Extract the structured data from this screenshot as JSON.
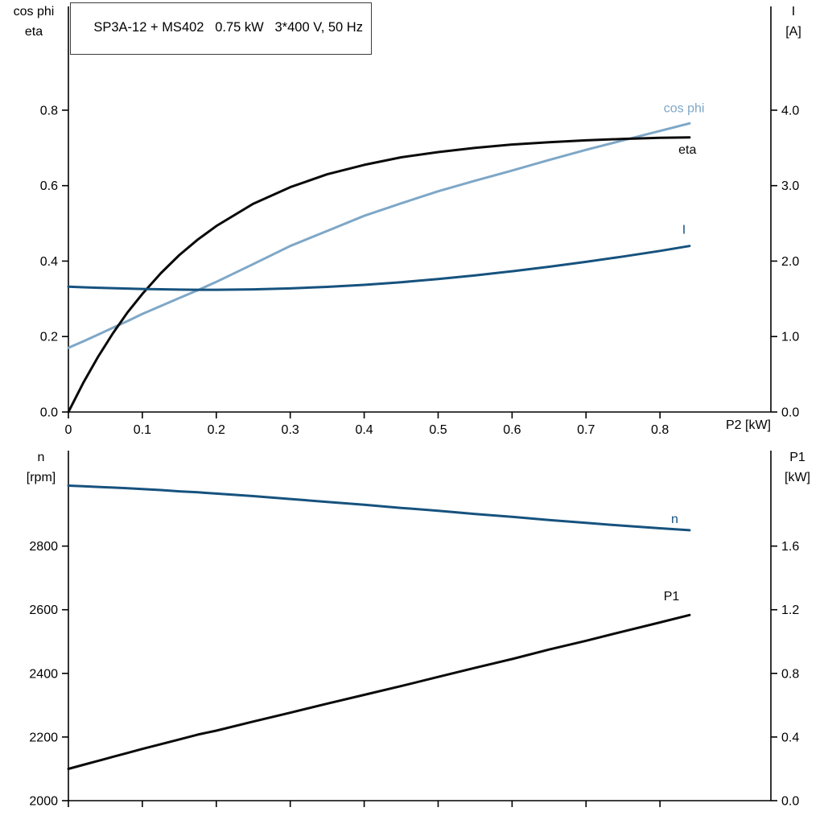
{
  "header": {
    "title": "SP3A-12 + MS402   0.75 kW   3*400 V, 50 Hz"
  },
  "colors": {
    "axis": "#000000",
    "text": "#000000",
    "curve_black": "#0a0a0a",
    "curve_light_blue": "#7ea7c7",
    "curve_dark_blue": "#16527e"
  },
  "chart_data": [
    {
      "type": "line",
      "title": "SP3A-12 + MS402   0.75 kW   3*400 V, 50 Hz",
      "grid": false,
      "x_axis": {
        "label": "P2 [kW]",
        "range": [
          0,
          0.95
        ],
        "ticks": [
          0,
          0.1,
          0.2,
          0.3,
          0.4,
          0.5,
          0.6,
          0.7,
          0.8
        ],
        "tick_labels": [
          "0",
          "0.1",
          "0.2",
          "0.3",
          "0.4",
          "0.5",
          "0.6",
          "0.7",
          "0.8"
        ],
        "show_tick_labels": true
      },
      "left_axis": {
        "title_lines": [
          "cos phi",
          "eta"
        ],
        "range": [
          0,
          1.075
        ],
        "ticks": [
          0,
          0.2,
          0.4,
          0.6,
          0.8
        ],
        "tick_labels": [
          "0.0",
          "0.2",
          "0.4",
          "0.6",
          "0.8"
        ]
      },
      "right_axis": {
        "title_lines": [
          "I",
          "[A]"
        ],
        "range": [
          0,
          5.375
        ],
        "ticks": [
          0,
          1,
          2,
          3,
          4
        ],
        "tick_labels": [
          "0.0",
          "1.0",
          "2.0",
          "3.0",
          "4.0"
        ]
      },
      "x": [
        0,
        0.02,
        0.04,
        0.06,
        0.08,
        0.1,
        0.125,
        0.15,
        0.175,
        0.2,
        0.25,
        0.3,
        0.35,
        0.4,
        0.45,
        0.5,
        0.55,
        0.6,
        0.65,
        0.7,
        0.75,
        0.8,
        0.84
      ],
      "series": [
        {
          "name": "cos phi",
          "axis": "left",
          "color": "curve_light_blue",
          "values": [
            0.17,
            0.187,
            0.205,
            0.223,
            0.241,
            0.26,
            0.281,
            0.302,
            0.323,
            0.345,
            0.392,
            0.44,
            0.48,
            0.52,
            0.553,
            0.585,
            0.613,
            0.64,
            0.668,
            0.695,
            0.72,
            0.745,
            0.765
          ],
          "label": {
            "text": "cos phi",
            "x": 0.805,
            "y": 0.795
          }
        },
        {
          "name": "eta",
          "axis": "left",
          "color": "curve_black",
          "values": [
            0,
            0.077,
            0.146,
            0.208,
            0.264,
            0.313,
            0.368,
            0.416,
            0.457,
            0.493,
            0.552,
            0.596,
            0.63,
            0.655,
            0.675,
            0.689,
            0.7,
            0.709,
            0.715,
            0.72,
            0.724,
            0.727,
            0.728
          ],
          "label": {
            "text": "eta",
            "x": 0.825,
            "y": 0.685
          }
        },
        {
          "name": "I",
          "axis": "right",
          "color": "curve_dark_blue",
          "values": [
            1.66,
            1.653,
            1.647,
            1.641,
            1.636,
            1.631,
            1.626,
            1.622,
            1.62,
            1.62,
            1.625,
            1.638,
            1.658,
            1.685,
            1.72,
            1.762,
            1.81,
            1.865,
            1.925,
            1.99,
            2.06,
            2.135,
            2.2
          ],
          "label": {
            "text": "I",
            "x": 0.83,
            "y": 2.36
          }
        }
      ]
    },
    {
      "type": "line",
      "title": "",
      "grid": false,
      "x_axis": {
        "label": "",
        "range": [
          0,
          0.95
        ],
        "ticks": [
          0,
          0.1,
          0.2,
          0.3,
          0.4,
          0.5,
          0.6,
          0.7,
          0.8
        ],
        "tick_labels": [],
        "show_tick_labels": false
      },
      "left_axis": {
        "title_lines": [
          "n",
          "[rpm]"
        ],
        "range": [
          2000,
          3100
        ],
        "ticks": [
          2000,
          2200,
          2400,
          2600,
          2800
        ],
        "tick_labels": [
          "2000",
          "2200",
          "2400",
          "2600",
          "2800"
        ]
      },
      "right_axis": {
        "title_lines": [
          "P1",
          "[kW]"
        ],
        "range": [
          0,
          2.2
        ],
        "ticks": [
          0,
          0.4,
          0.8,
          1.2,
          1.6
        ],
        "tick_labels": [
          "0.0",
          "0.4",
          "0.8",
          "1.2",
          "1.6"
        ]
      },
      "x": [
        0,
        0.02,
        0.04,
        0.06,
        0.08,
        0.1,
        0.125,
        0.15,
        0.175,
        0.2,
        0.25,
        0.3,
        0.35,
        0.4,
        0.45,
        0.5,
        0.55,
        0.6,
        0.65,
        0.7,
        0.75,
        0.8,
        0.84
      ],
      "series": [
        {
          "name": "n",
          "axis": "left",
          "color": "curve_dark_blue",
          "values": [
            2990,
            2988,
            2986,
            2984,
            2982,
            2979,
            2976,
            2972,
            2969,
            2965,
            2957,
            2948,
            2939,
            2930,
            2920,
            2911,
            2901,
            2892,
            2882,
            2873,
            2864,
            2856,
            2850
          ],
          "label": {
            "text": "n",
            "x": 0.815,
            "y": 2872
          }
        },
        {
          "name": "P1",
          "axis": "right",
          "color": "curve_black",
          "values": [
            0.2,
            0.225,
            0.25,
            0.275,
            0.3,
            0.325,
            0.355,
            0.385,
            0.415,
            0.44,
            0.497,
            0.553,
            0.61,
            0.665,
            0.72,
            0.778,
            0.835,
            0.89,
            0.95,
            1.005,
            1.063,
            1.12,
            1.167
          ],
          "label": {
            "text": "P1",
            "x": 0.805,
            "y": 1.26
          }
        }
      ]
    }
  ]
}
